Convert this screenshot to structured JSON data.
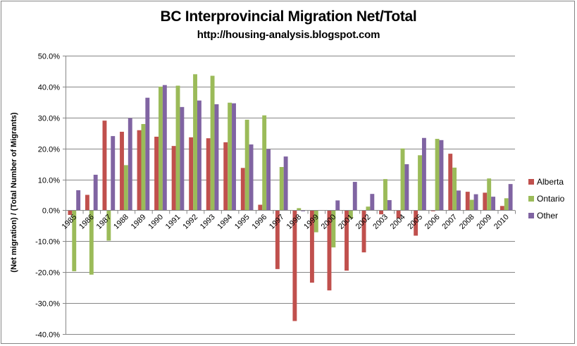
{
  "chart_data": {
    "type": "bar",
    "title": "BC Interprovincial Migration Net/Total",
    "subtitle": "http://housing-analysis.blogspot.com",
    "xlabel": "",
    "ylabel": "(Net migration) / (Total Number of Migrants)",
    "ylim": [
      -0.4,
      0.5
    ],
    "yticks": [
      "50.0%",
      "40.0%",
      "30.0%",
      "20.0%",
      "10.0%",
      "0.0%",
      "-10.0%",
      "-20.0%",
      "-30.0%",
      "-40.0%"
    ],
    "ytick_values": [
      50,
      40,
      30,
      20,
      10,
      0,
      -10,
      -20,
      -30,
      -40
    ],
    "grid": true,
    "legend_position": "right",
    "categories": [
      "1985",
      "1986",
      "1987",
      "1988",
      "1989",
      "1990",
      "1991",
      "1992",
      "1993",
      "1994",
      "1995",
      "1996",
      "1997",
      "1998",
      "1999",
      "2000",
      "2001",
      "2002",
      "2003",
      "2004",
      "2005",
      "2006",
      "2007",
      "2008",
      "2009",
      "2010"
    ],
    "series": [
      {
        "name": "Alberta",
        "color": "#C0504D",
        "values": [
          -1.5,
          5.0,
          29.0,
          25.4,
          25.9,
          23.8,
          20.8,
          23.6,
          23.3,
          22.0,
          13.7,
          1.8,
          -19.0,
          -35.8,
          -23.4,
          -25.9,
          -19.5,
          -13.6,
          -1.3,
          -2.6,
          -8.2,
          -0.3,
          18.3,
          6.0,
          5.7,
          1.4
        ]
      },
      {
        "name": "Ontario",
        "color": "#9BBB59",
        "values": [
          -19.7,
          -20.8,
          -9.8,
          14.6,
          27.9,
          40.0,
          40.3,
          44.0,
          43.5,
          34.8,
          29.3,
          30.7,
          14.0,
          0.7,
          -7.1,
          -12.0,
          -2.7,
          1.2,
          10.1,
          20.0,
          17.8,
          23.1,
          13.8,
          3.4,
          10.3,
          3.9
        ]
      },
      {
        "name": "Other",
        "color": "#8064A2",
        "values": [
          6.5,
          11.5,
          24.0,
          29.8,
          36.4,
          40.5,
          33.4,
          35.5,
          34.3,
          34.6,
          21.3,
          19.7,
          17.4,
          -0.3,
          0.0,
          3.2,
          9.2,
          5.3,
          3.3,
          14.9,
          23.4,
          22.7,
          6.4,
          5.2,
          4.4,
          8.5
        ]
      }
    ]
  }
}
